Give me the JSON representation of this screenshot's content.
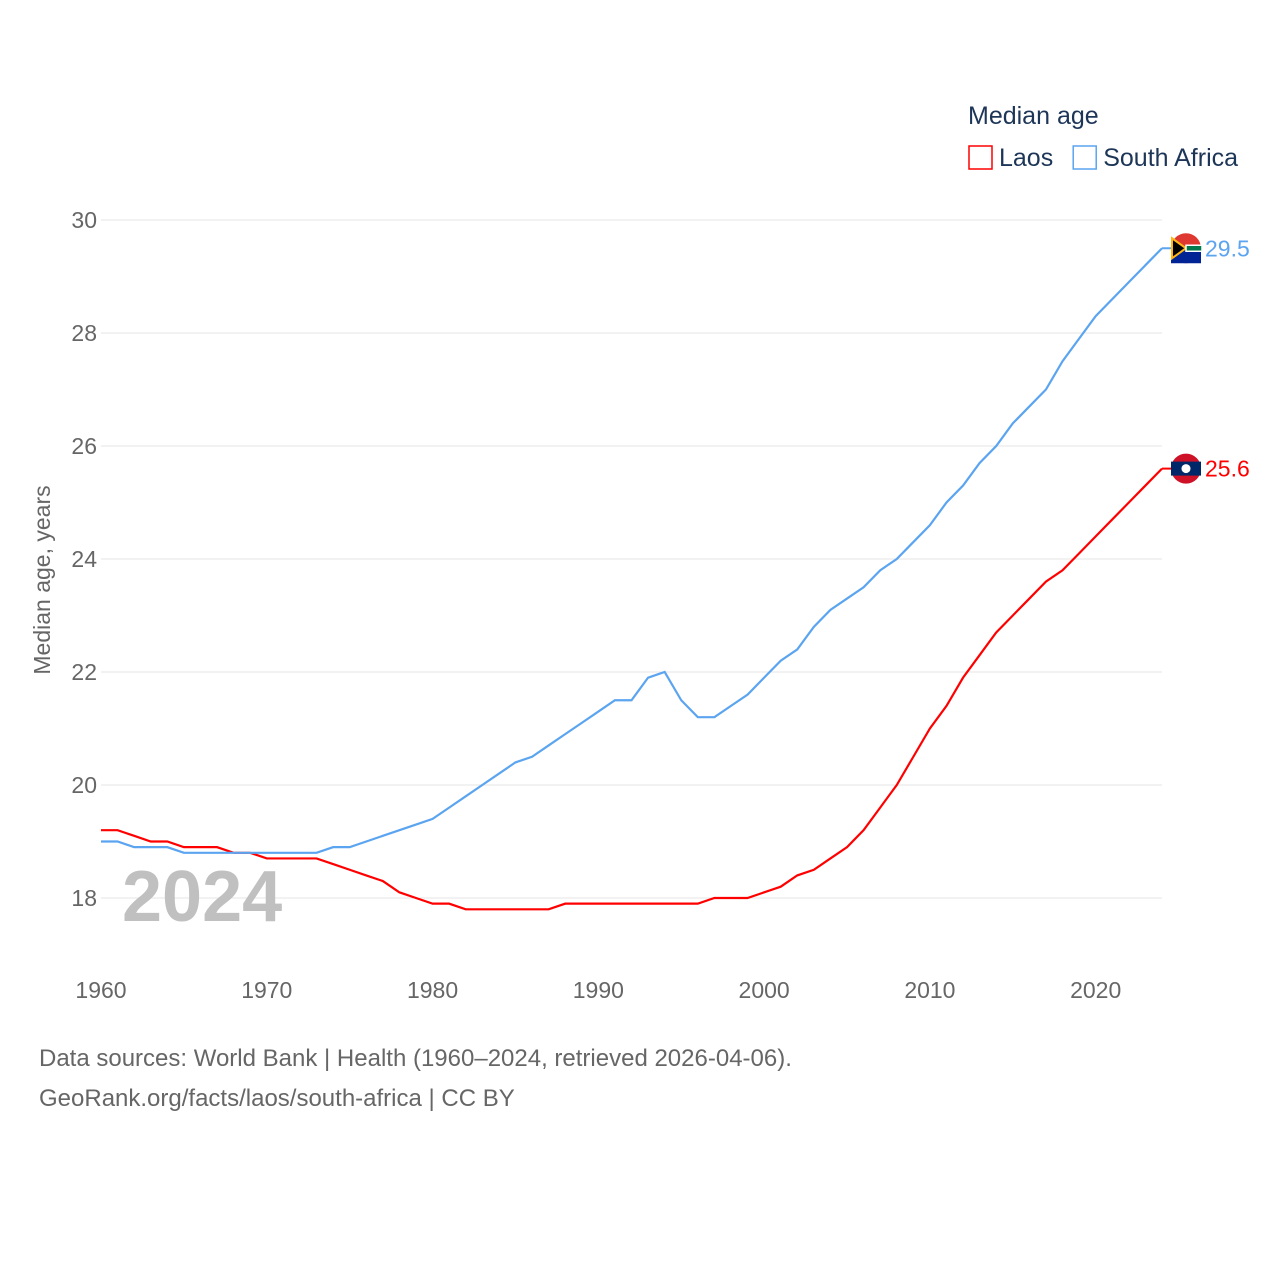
{
  "chart_data": {
    "type": "line",
    "title": "Median age",
    "ylabel": "Median age, years",
    "xlabel": "",
    "ylim": [
      18,
      30
    ],
    "xlim": [
      1960,
      2024
    ],
    "yticks": [
      18,
      20,
      22,
      24,
      26,
      28,
      30
    ],
    "xticks": [
      1960,
      1970,
      1980,
      1990,
      2000,
      2010,
      2020
    ],
    "year_label": "2024",
    "legend_placement": "top-right",
    "grid": true,
    "x": [
      1960,
      1961,
      1962,
      1963,
      1964,
      1965,
      1966,
      1967,
      1968,
      1969,
      1970,
      1971,
      1972,
      1973,
      1974,
      1975,
      1976,
      1977,
      1978,
      1979,
      1980,
      1981,
      1982,
      1983,
      1984,
      1985,
      1986,
      1987,
      1988,
      1989,
      1990,
      1991,
      1992,
      1993,
      1994,
      1995,
      1996,
      1997,
      1998,
      1999,
      2000,
      2001,
      2002,
      2003,
      2004,
      2005,
      2006,
      2007,
      2008,
      2009,
      2010,
      2011,
      2012,
      2013,
      2014,
      2015,
      2016,
      2017,
      2018,
      2019,
      2020,
      2021,
      2022,
      2023,
      2024
    ],
    "series": [
      {
        "name": "Laos",
        "color": "#ff0000",
        "end_label": "25.6",
        "values": [
          19.2,
          19.2,
          19.1,
          19.0,
          19.0,
          18.9,
          18.9,
          18.9,
          18.8,
          18.8,
          18.7,
          18.7,
          18.7,
          18.7,
          18.6,
          18.5,
          18.4,
          18.3,
          18.1,
          18.0,
          17.9,
          17.9,
          17.8,
          17.8,
          17.8,
          17.8,
          17.8,
          17.8,
          17.9,
          17.9,
          17.9,
          17.9,
          17.9,
          17.9,
          17.9,
          17.9,
          17.9,
          18.0,
          18.0,
          18.0,
          18.1,
          18.2,
          18.4,
          18.5,
          18.7,
          18.9,
          19.2,
          19.6,
          20.0,
          20.5,
          21.0,
          21.4,
          21.9,
          22.3,
          22.7,
          23.0,
          23.3,
          23.6,
          23.8,
          24.1,
          24.4,
          24.7,
          25.0,
          25.3,
          25.6
        ]
      },
      {
        "name": "South Africa",
        "color": "#5ba4f0",
        "end_label": "29.5",
        "values": [
          19.0,
          19.0,
          18.9,
          18.9,
          18.9,
          18.8,
          18.8,
          18.8,
          18.8,
          18.8,
          18.8,
          18.8,
          18.8,
          18.8,
          18.9,
          18.9,
          19.0,
          19.1,
          19.2,
          19.3,
          19.4,
          19.6,
          19.8,
          20.0,
          20.2,
          20.4,
          20.5,
          20.7,
          20.9,
          21.1,
          21.3,
          21.5,
          21.5,
          21.9,
          22.0,
          21.5,
          21.2,
          21.2,
          21.4,
          21.6,
          21.9,
          22.2,
          22.4,
          22.8,
          23.1,
          23.3,
          23.5,
          23.8,
          24.0,
          24.3,
          24.6,
          25.0,
          25.3,
          25.7,
          26.0,
          26.4,
          26.7,
          27.0,
          27.5,
          27.9,
          28.3,
          28.6,
          28.9,
          29.2,
          29.5
        ]
      }
    ]
  },
  "footer": {
    "line1": "Data sources: World Bank | Health (1960–2024, retrieved 2026-04-06).",
    "line2": "GeoRank.org/facts/laos/south-africa | CC BY"
  }
}
